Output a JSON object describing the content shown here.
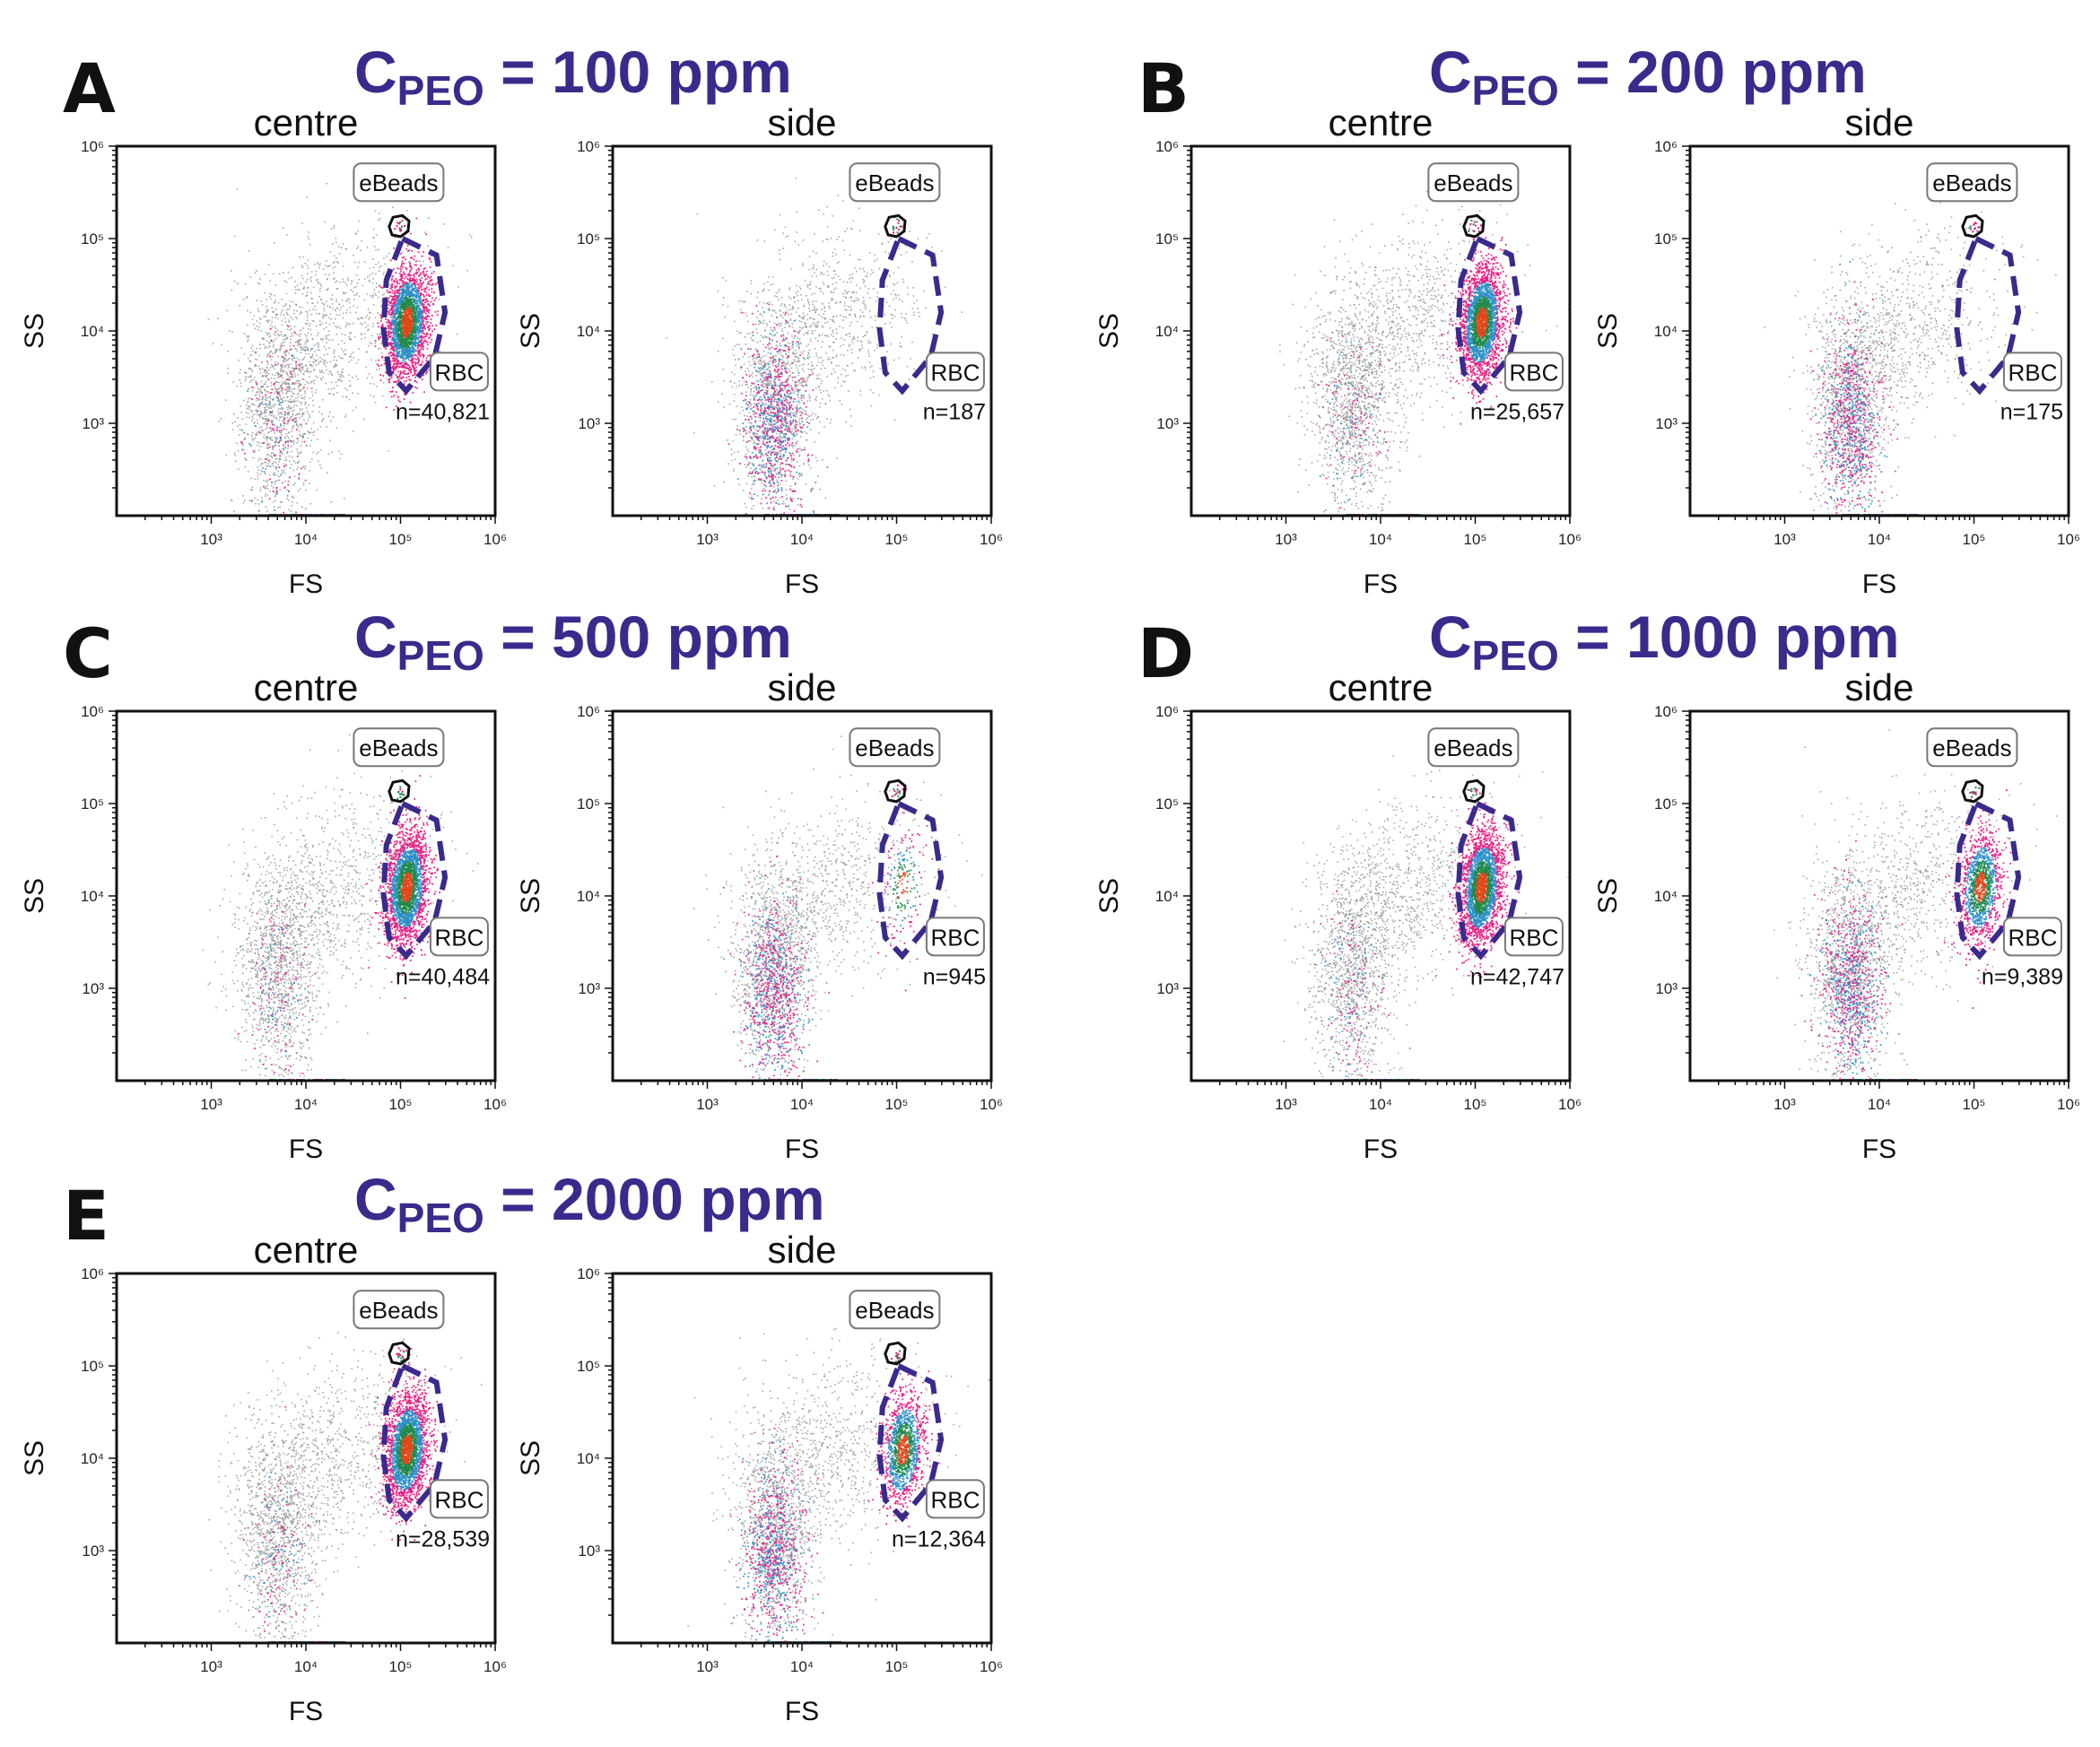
{
  "figure": {
    "panels": [
      {
        "letter": "A",
        "title": "C",
        "title_sub": "PEO",
        "title_rest": " = 100 ppm",
        "ppm": 100
      },
      {
        "letter": "B",
        "title": "C",
        "title_sub": "PEO",
        "title_rest": " = 200 ppm",
        "ppm": 200
      },
      {
        "letter": "C",
        "title": "C",
        "title_sub": "PEO",
        "title_rest": " = 500 ppm",
        "ppm": 500
      },
      {
        "letter": "D",
        "title": "C",
        "title_sub": "PEO",
        "title_rest": " = 1000 ppm",
        "ppm": 1000
      },
      {
        "letter": "E",
        "title": "C",
        "title_sub": "PEO",
        "title_rest": " = 2000 ppm",
        "ppm": 2000
      }
    ]
  },
  "chart_data": [
    {
      "type": "scatter",
      "panel": "A",
      "title": "centre",
      "xlabel": "FS",
      "ylabel": "SS",
      "x_scale": "log",
      "y_scale": "log",
      "xlim": [
        100,
        1000000
      ],
      "ylim": [
        100,
        1000000
      ],
      "x_ticks": [
        "10³",
        "10⁴",
        "10⁵",
        "10⁶"
      ],
      "y_ticks": [
        "10³",
        "10⁴",
        "10⁵",
        "10⁶"
      ],
      "gates": [
        {
          "name": "eBeads"
        },
        {
          "name": "RBC",
          "count": "n=40,821"
        }
      ],
      "rbc_population": "dense"
    },
    {
      "type": "scatter",
      "panel": "A",
      "title": "side",
      "xlabel": "FS",
      "ylabel": "SS",
      "x_scale": "log",
      "y_scale": "log",
      "xlim": [
        100,
        1000000
      ],
      "ylim": [
        100,
        1000000
      ],
      "x_ticks": [
        "10³",
        "10⁴",
        "10⁵",
        "10⁶"
      ],
      "y_ticks": [
        "10³",
        "10⁴",
        "10⁵",
        "10⁶"
      ],
      "gates": [
        {
          "name": "eBeads"
        },
        {
          "name": "RBC",
          "count": "n=187"
        }
      ],
      "rbc_population": "none"
    },
    {
      "type": "scatter",
      "panel": "B",
      "title": "centre",
      "xlabel": "FS",
      "ylabel": "SS",
      "x_scale": "log",
      "y_scale": "log",
      "xlim": [
        100,
        1000000
      ],
      "ylim": [
        100,
        1000000
      ],
      "x_ticks": [
        "10³",
        "10⁴",
        "10⁵",
        "10⁶"
      ],
      "y_ticks": [
        "10³",
        "10⁴",
        "10⁵",
        "10⁶"
      ],
      "gates": [
        {
          "name": "eBeads"
        },
        {
          "name": "RBC",
          "count": "n=25,657"
        }
      ],
      "rbc_population": "dense"
    },
    {
      "type": "scatter",
      "panel": "B",
      "title": "side",
      "xlabel": "FS",
      "ylabel": "SS",
      "x_scale": "log",
      "y_scale": "log",
      "xlim": [
        100,
        1000000
      ],
      "ylim": [
        100,
        1000000
      ],
      "x_ticks": [
        "10³",
        "10⁴",
        "10⁵",
        "10⁶"
      ],
      "y_ticks": [
        "10³",
        "10⁴",
        "10⁵",
        "10⁶"
      ],
      "gates": [
        {
          "name": "eBeads"
        },
        {
          "name": "RBC",
          "count": "n=175"
        }
      ],
      "rbc_population": "none"
    },
    {
      "type": "scatter",
      "panel": "C",
      "title": "centre",
      "xlabel": "FS",
      "ylabel": "SS",
      "x_scale": "log",
      "y_scale": "log",
      "xlim": [
        100,
        1000000
      ],
      "ylim": [
        100,
        1000000
      ],
      "x_ticks": [
        "10³",
        "10⁴",
        "10⁵",
        "10⁶"
      ],
      "y_ticks": [
        "10³",
        "10⁴",
        "10⁵",
        "10⁶"
      ],
      "gates": [
        {
          "name": "eBeads"
        },
        {
          "name": "RBC",
          "count": "n=40,484"
        }
      ],
      "rbc_population": "dense"
    },
    {
      "type": "scatter",
      "panel": "C",
      "title": "side",
      "xlabel": "FS",
      "ylabel": "SS",
      "x_scale": "log",
      "y_scale": "log",
      "xlim": [
        100,
        1000000
      ],
      "ylim": [
        100,
        1000000
      ],
      "x_ticks": [
        "10³",
        "10⁴",
        "10⁵",
        "10⁶"
      ],
      "y_ticks": [
        "10³",
        "10⁴",
        "10⁵",
        "10⁶"
      ],
      "gates": [
        {
          "name": "eBeads"
        },
        {
          "name": "RBC",
          "count": "n=945"
        }
      ],
      "rbc_population": "sparse"
    },
    {
      "type": "scatter",
      "panel": "D",
      "title": "centre",
      "xlabel": "FS",
      "ylabel": "SS",
      "x_scale": "log",
      "y_scale": "log",
      "xlim": [
        100,
        1000000
      ],
      "ylim": [
        100,
        1000000
      ],
      "x_ticks": [
        "10³",
        "10⁴",
        "10⁵",
        "10⁶"
      ],
      "y_ticks": [
        "10³",
        "10⁴",
        "10⁵",
        "10⁶"
      ],
      "gates": [
        {
          "name": "eBeads"
        },
        {
          "name": "RBC",
          "count": "n=42,747"
        }
      ],
      "rbc_population": "dense"
    },
    {
      "type": "scatter",
      "panel": "D",
      "title": "side",
      "xlabel": "FS",
      "ylabel": "SS",
      "x_scale": "log",
      "y_scale": "log",
      "xlim": [
        100,
        1000000
      ],
      "ylim": [
        100,
        1000000
      ],
      "x_ticks": [
        "10³",
        "10⁴",
        "10⁵",
        "10⁶"
      ],
      "y_ticks": [
        "10³",
        "10⁴",
        "10⁵",
        "10⁶"
      ],
      "gates": [
        {
          "name": "eBeads"
        },
        {
          "name": "RBC",
          "count": "n=9,389"
        }
      ],
      "rbc_population": "medium"
    },
    {
      "type": "scatter",
      "panel": "E",
      "title": "centre",
      "xlabel": "FS",
      "ylabel": "SS",
      "x_scale": "log",
      "y_scale": "log",
      "xlim": [
        100,
        1000000
      ],
      "ylim": [
        100,
        1000000
      ],
      "x_ticks": [
        "10³",
        "10⁴",
        "10⁵",
        "10⁶"
      ],
      "y_ticks": [
        "10³",
        "10⁴",
        "10⁵",
        "10⁶"
      ],
      "gates": [
        {
          "name": "eBeads"
        },
        {
          "name": "RBC",
          "count": "n=28,539"
        }
      ],
      "rbc_population": "dense"
    },
    {
      "type": "scatter",
      "panel": "E",
      "title": "side",
      "xlabel": "FS",
      "ylabel": "SS",
      "x_scale": "log",
      "y_scale": "log",
      "xlim": [
        100,
        1000000
      ],
      "ylim": [
        100,
        1000000
      ],
      "x_ticks": [
        "10³",
        "10⁴",
        "10⁵",
        "10⁶"
      ],
      "y_ticks": [
        "10³",
        "10⁴",
        "10⁵",
        "10⁶"
      ],
      "gates": [
        {
          "name": "eBeads"
        },
        {
          "name": "RBC",
          "count": "n=12,364"
        }
      ],
      "rbc_population": "medium"
    }
  ],
  "colors": {
    "title": "#3a2a8c",
    "rbc_gate": "#3a2a8c",
    "bead_gate": "#111111",
    "background_events": "#8c8c8c",
    "density_low": "#e6197f",
    "density_mid": "#2a8fc7",
    "density_high": "#1f8a4a",
    "density_peak": "#e0461a"
  }
}
